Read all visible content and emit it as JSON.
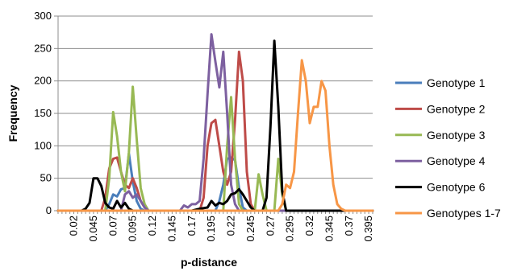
{
  "chart_data": {
    "type": "line",
    "title": "",
    "xlabel": "p-distance",
    "ylabel": "Frequency",
    "xlim": [
      0,
      0.4
    ],
    "ylim": [
      0,
      300
    ],
    "y_ticks": [
      0,
      50,
      100,
      150,
      200,
      250,
      300
    ],
    "x_tick_labels": [
      "0.02",
      "0.045",
      "0.07",
      "0.095",
      "0.12",
      "0.145",
      "0.17",
      "0.195",
      "0.22",
      "0.245",
      "0.27",
      "0.295",
      "0.32",
      "0.345",
      "0.37",
      "0.395"
    ],
    "grid": "horizontal",
    "legend_position": "right",
    "series": [
      {
        "name": "Genotype 1",
        "color": "#4a7ebb",
        "points": [
          [
            0.0,
            0
          ],
          [
            0.06,
            0
          ],
          [
            0.065,
            10
          ],
          [
            0.07,
            25
          ],
          [
            0.075,
            22
          ],
          [
            0.08,
            33
          ],
          [
            0.085,
            35
          ],
          [
            0.09,
            88
          ],
          [
            0.095,
            45
          ],
          [
            0.1,
            15
          ],
          [
            0.105,
            3
          ],
          [
            0.11,
            0
          ],
          [
            0.2,
            0
          ],
          [
            0.205,
            15
          ],
          [
            0.21,
            40
          ],
          [
            0.215,
            80
          ],
          [
            0.22,
            82
          ],
          [
            0.225,
            78
          ],
          [
            0.23,
            35
          ],
          [
            0.235,
            5
          ],
          [
            0.24,
            0
          ],
          [
            0.4,
            0
          ]
        ]
      },
      {
        "name": "Genotype 2",
        "color": "#be4b48",
        "points": [
          [
            0.0,
            0
          ],
          [
            0.055,
            0
          ],
          [
            0.06,
            20
          ],
          [
            0.065,
            65
          ],
          [
            0.07,
            80
          ],
          [
            0.075,
            82
          ],
          [
            0.08,
            60
          ],
          [
            0.085,
            40
          ],
          [
            0.09,
            35
          ],
          [
            0.095,
            50
          ],
          [
            0.1,
            35
          ],
          [
            0.105,
            15
          ],
          [
            0.11,
            5
          ],
          [
            0.115,
            0
          ],
          [
            0.18,
            0
          ],
          [
            0.185,
            20
          ],
          [
            0.19,
            100
          ],
          [
            0.195,
            135
          ],
          [
            0.2,
            140
          ],
          [
            0.205,
            100
          ],
          [
            0.21,
            60
          ],
          [
            0.215,
            40
          ],
          [
            0.22,
            60
          ],
          [
            0.225,
            140
          ],
          [
            0.23,
            245
          ],
          [
            0.235,
            200
          ],
          [
            0.24,
            60
          ],
          [
            0.245,
            10
          ],
          [
            0.25,
            0
          ],
          [
            0.4,
            0
          ]
        ]
      },
      {
        "name": "Genotype 3",
        "color": "#98b954",
        "points": [
          [
            0.0,
            0
          ],
          [
            0.06,
            0
          ],
          [
            0.065,
            50
          ],
          [
            0.07,
            152
          ],
          [
            0.075,
            115
          ],
          [
            0.08,
            60
          ],
          [
            0.085,
            30
          ],
          [
            0.09,
            90
          ],
          [
            0.095,
            191
          ],
          [
            0.1,
            110
          ],
          [
            0.105,
            35
          ],
          [
            0.11,
            10
          ],
          [
            0.115,
            0
          ],
          [
            0.21,
            0
          ],
          [
            0.215,
            100
          ],
          [
            0.22,
            175
          ],
          [
            0.225,
            80
          ],
          [
            0.23,
            10
          ],
          [
            0.235,
            0
          ],
          [
            0.25,
            0
          ],
          [
            0.255,
            56
          ],
          [
            0.26,
            25
          ],
          [
            0.265,
            0
          ],
          [
            0.275,
            0
          ],
          [
            0.28,
            80
          ],
          [
            0.285,
            25
          ],
          [
            0.29,
            0
          ],
          [
            0.4,
            0
          ]
        ]
      },
      {
        "name": "Genotype 4",
        "color": "#7d60a0",
        "points": [
          [
            0.0,
            0
          ],
          [
            0.08,
            0
          ],
          [
            0.085,
            25
          ],
          [
            0.09,
            30
          ],
          [
            0.095,
            20
          ],
          [
            0.1,
            25
          ],
          [
            0.105,
            15
          ],
          [
            0.11,
            5
          ],
          [
            0.115,
            0
          ],
          [
            0.155,
            0
          ],
          [
            0.16,
            8
          ],
          [
            0.165,
            5
          ],
          [
            0.17,
            10
          ],
          [
            0.175,
            10
          ],
          [
            0.18,
            15
          ],
          [
            0.185,
            80
          ],
          [
            0.19,
            180
          ],
          [
            0.195,
            272
          ],
          [
            0.2,
            230
          ],
          [
            0.205,
            190
          ],
          [
            0.21,
            245
          ],
          [
            0.215,
            150
          ],
          [
            0.22,
            40
          ],
          [
            0.225,
            10
          ],
          [
            0.23,
            0
          ],
          [
            0.4,
            0
          ]
        ]
      },
      {
        "name": "Genotype 6",
        "color": "#000000",
        "points": [
          [
            0.0,
            0
          ],
          [
            0.03,
            0
          ],
          [
            0.035,
            3
          ],
          [
            0.04,
            12
          ],
          [
            0.045,
            50
          ],
          [
            0.05,
            50
          ],
          [
            0.055,
            38
          ],
          [
            0.06,
            12
          ],
          [
            0.065,
            5
          ],
          [
            0.07,
            3
          ],
          [
            0.075,
            15
          ],
          [
            0.08,
            5
          ],
          [
            0.085,
            12
          ],
          [
            0.09,
            3
          ],
          [
            0.095,
            0
          ],
          [
            0.17,
            0
          ],
          [
            0.18,
            3
          ],
          [
            0.19,
            5
          ],
          [
            0.195,
            15
          ],
          [
            0.2,
            8
          ],
          [
            0.205,
            12
          ],
          [
            0.21,
            10
          ],
          [
            0.215,
            15
          ],
          [
            0.22,
            25
          ],
          [
            0.225,
            27
          ],
          [
            0.23,
            33
          ],
          [
            0.235,
            25
          ],
          [
            0.24,
            15
          ],
          [
            0.245,
            5
          ],
          [
            0.25,
            0
          ],
          [
            0.26,
            0
          ],
          [
            0.265,
            20
          ],
          [
            0.27,
            130
          ],
          [
            0.275,
            262
          ],
          [
            0.28,
            160
          ],
          [
            0.285,
            30
          ],
          [
            0.29,
            0
          ],
          [
            0.4,
            0
          ]
        ]
      },
      {
        "name": "Genotypes 1-7",
        "color": "#f79646",
        "points": [
          [
            0.0,
            0
          ],
          [
            0.28,
            0
          ],
          [
            0.285,
            10
          ],
          [
            0.29,
            40
          ],
          [
            0.295,
            35
          ],
          [
            0.3,
            60
          ],
          [
            0.305,
            150
          ],
          [
            0.31,
            232
          ],
          [
            0.315,
            200
          ],
          [
            0.32,
            135
          ],
          [
            0.325,
            160
          ],
          [
            0.33,
            160
          ],
          [
            0.335,
            200
          ],
          [
            0.34,
            185
          ],
          [
            0.345,
            100
          ],
          [
            0.35,
            40
          ],
          [
            0.355,
            10
          ],
          [
            0.36,
            3
          ],
          [
            0.365,
            0
          ],
          [
            0.4,
            0
          ]
        ]
      }
    ]
  }
}
